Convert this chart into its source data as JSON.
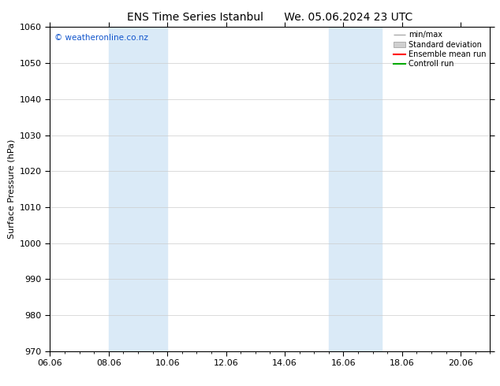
{
  "title_left": "ENS Time Series Istanbul",
  "title_right": "We. 05.06.2024 23 UTC",
  "ylabel": "Surface Pressure (hPa)",
  "ylim": [
    970,
    1060
  ],
  "yticks": [
    970,
    980,
    990,
    1000,
    1010,
    1020,
    1030,
    1040,
    1050,
    1060
  ],
  "xlim_start": 0.0,
  "xlim_end": 15.0,
  "xtick_labels": [
    "06.06",
    "08.06",
    "10.06",
    "12.06",
    "14.06",
    "16.06",
    "18.06",
    "20.06"
  ],
  "xtick_positions": [
    0.0,
    2.0,
    4.0,
    6.0,
    8.0,
    10.0,
    12.0,
    14.0
  ],
  "shaded_bands": [
    {
      "x_start": 2.0,
      "x_end": 4.0,
      "color": "#daeaf7"
    },
    {
      "x_start": 9.5,
      "x_end": 11.3,
      "color": "#daeaf7"
    }
  ],
  "watermark": "© weatheronline.co.nz",
  "watermark_color": "#1155cc",
  "legend_labels": [
    "min/max",
    "Standard deviation",
    "Ensemble mean run",
    "Controll run"
  ],
  "legend_line_colors": [
    "#aaaaaa",
    "#bbbbbb",
    "#ff0000",
    "#00aa00"
  ],
  "background_color": "#ffffff",
  "plot_background": "#ffffff",
  "grid_color": "#cccccc",
  "title_fontsize": 10,
  "axis_label_fontsize": 8,
  "tick_fontsize": 8,
  "legend_fontsize": 7
}
